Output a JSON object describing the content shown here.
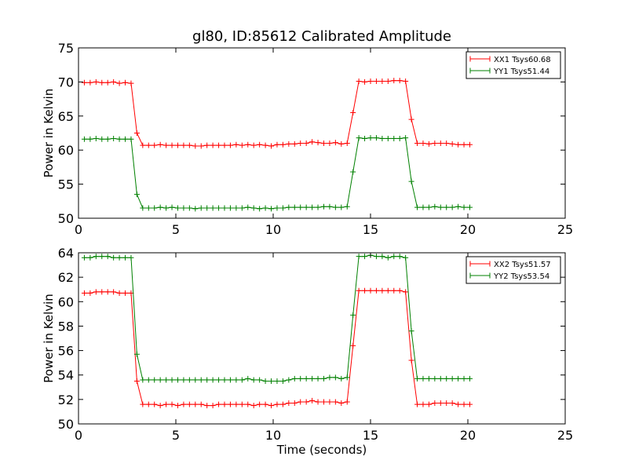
{
  "title": "gl80, ID:85612 Calibrated Amplitude",
  "colors": {
    "XX": "#ff0000",
    "YY": "#008000"
  },
  "chart_data": [
    {
      "type": "line",
      "title": "gl80, ID:85612 Calibrated Amplitude",
      "xlabel": "",
      "ylabel": "Power in Kelvin",
      "xlim": [
        0,
        25
      ],
      "ylim": [
        50,
        75
      ],
      "xticks": [
        0,
        5,
        10,
        15,
        20,
        25
      ],
      "yticks": [
        50,
        55,
        60,
        65,
        70,
        75
      ],
      "legend_position": "top-right",
      "x": [
        0.3,
        0.6,
        0.9,
        1.2,
        1.5,
        1.8,
        2.1,
        2.4,
        2.7,
        3.0,
        3.3,
        3.6,
        3.9,
        4.2,
        4.5,
        4.8,
        5.1,
        5.4,
        5.7,
        6.0,
        6.3,
        6.6,
        6.9,
        7.2,
        7.5,
        7.8,
        8.1,
        8.4,
        8.7,
        9.0,
        9.3,
        9.6,
        9.9,
        10.2,
        10.5,
        10.8,
        11.1,
        11.4,
        11.7,
        12.0,
        12.3,
        12.6,
        12.9,
        13.2,
        13.5,
        13.8,
        14.1,
        14.4,
        14.7,
        15.0,
        15.3,
        15.6,
        15.9,
        16.2,
        16.5,
        16.8,
        17.1,
        17.4,
        17.7,
        18.0,
        18.3,
        18.6,
        18.9,
        19.2,
        19.5,
        19.8,
        20.1
      ],
      "series": [
        {
          "name": "XX1 Tsys60.68",
          "color": "#ff0000",
          "values": [
            69.9,
            69.9,
            70.0,
            69.9,
            69.9,
            70.0,
            69.8,
            69.9,
            69.8,
            62.5,
            60.7,
            60.7,
            60.7,
            60.8,
            60.7,
            60.7,
            60.7,
            60.7,
            60.7,
            60.6,
            60.6,
            60.7,
            60.7,
            60.7,
            60.7,
            60.7,
            60.8,
            60.7,
            60.8,
            60.7,
            60.8,
            60.7,
            60.6,
            60.8,
            60.8,
            60.9,
            60.9,
            61.0,
            61.0,
            61.2,
            61.1,
            61.0,
            61.0,
            61.1,
            60.9,
            61.0,
            65.5,
            70.1,
            70.0,
            70.1,
            70.1,
            70.1,
            70.1,
            70.2,
            70.2,
            70.1,
            64.5,
            61.0,
            61.0,
            60.9,
            61.0,
            61.0,
            61.0,
            60.9,
            60.8,
            60.8,
            60.8
          ]
        },
        {
          "name": "YY1 Tsys51.44",
          "color": "#008000",
          "values": [
            61.6,
            61.6,
            61.7,
            61.6,
            61.6,
            61.7,
            61.6,
            61.6,
            61.6,
            53.5,
            51.5,
            51.5,
            51.5,
            51.6,
            51.5,
            51.6,
            51.5,
            51.5,
            51.5,
            51.4,
            51.5,
            51.5,
            51.5,
            51.5,
            51.5,
            51.5,
            51.5,
            51.5,
            51.6,
            51.5,
            51.4,
            51.5,
            51.4,
            51.5,
            51.5,
            51.6,
            51.6,
            51.6,
            51.6,
            51.6,
            51.6,
            51.7,
            51.7,
            51.6,
            51.6,
            51.7,
            56.8,
            61.8,
            61.7,
            61.8,
            61.8,
            61.7,
            61.7,
            61.7,
            61.7,
            61.8,
            55.4,
            51.6,
            51.6,
            51.6,
            51.7,
            51.6,
            51.6,
            51.6,
            51.7,
            51.6,
            51.6
          ]
        }
      ]
    },
    {
      "type": "line",
      "title": "",
      "xlabel": "Time (seconds)",
      "ylabel": "Power in Kelvin",
      "xlim": [
        0,
        25
      ],
      "ylim": [
        50,
        64
      ],
      "xticks": [
        0,
        5,
        10,
        15,
        20,
        25
      ],
      "yticks": [
        50,
        52,
        54,
        56,
        58,
        60,
        62,
        64
      ],
      "legend_position": "top-right",
      "x": [
        0.3,
        0.6,
        0.9,
        1.2,
        1.5,
        1.8,
        2.1,
        2.4,
        2.7,
        3.0,
        3.3,
        3.6,
        3.9,
        4.2,
        4.5,
        4.8,
        5.1,
        5.4,
        5.7,
        6.0,
        6.3,
        6.6,
        6.9,
        7.2,
        7.5,
        7.8,
        8.1,
        8.4,
        8.7,
        9.0,
        9.3,
        9.6,
        9.9,
        10.2,
        10.5,
        10.8,
        11.1,
        11.4,
        11.7,
        12.0,
        12.3,
        12.6,
        12.9,
        13.2,
        13.5,
        13.8,
        14.1,
        14.4,
        14.7,
        15.0,
        15.3,
        15.6,
        15.9,
        16.2,
        16.5,
        16.8,
        17.1,
        17.4,
        17.7,
        18.0,
        18.3,
        18.6,
        18.9,
        19.2,
        19.5,
        19.8,
        20.1
      ],
      "series": [
        {
          "name": "XX2 Tsys51.57",
          "color": "#ff0000",
          "values": [
            60.7,
            60.7,
            60.8,
            60.8,
            60.8,
            60.8,
            60.7,
            60.7,
            60.7,
            53.5,
            51.6,
            51.6,
            51.6,
            51.5,
            51.6,
            51.6,
            51.5,
            51.6,
            51.6,
            51.6,
            51.6,
            51.5,
            51.5,
            51.6,
            51.6,
            51.6,
            51.6,
            51.6,
            51.6,
            51.5,
            51.6,
            51.6,
            51.5,
            51.6,
            51.6,
            51.7,
            51.7,
            51.8,
            51.8,
            51.9,
            51.8,
            51.8,
            51.8,
            51.8,
            51.7,
            51.8,
            56.4,
            60.9,
            60.9,
            60.9,
            60.9,
            60.9,
            60.9,
            60.9,
            60.9,
            60.8,
            55.2,
            51.6,
            51.6,
            51.6,
            51.7,
            51.7,
            51.7,
            51.7,
            51.6,
            51.6,
            51.6
          ]
        },
        {
          "name": "YY2 Tsys53.54",
          "color": "#008000",
          "values": [
            63.6,
            63.6,
            63.7,
            63.7,
            63.7,
            63.6,
            63.6,
            63.6,
            63.6,
            55.7,
            53.6,
            53.6,
            53.6,
            53.6,
            53.6,
            53.6,
            53.6,
            53.6,
            53.6,
            53.6,
            53.6,
            53.6,
            53.6,
            53.6,
            53.6,
            53.6,
            53.6,
            53.6,
            53.7,
            53.6,
            53.6,
            53.5,
            53.5,
            53.5,
            53.5,
            53.6,
            53.7,
            53.7,
            53.7,
            53.7,
            53.7,
            53.7,
            53.8,
            53.8,
            53.7,
            53.8,
            58.9,
            63.7,
            63.7,
            63.8,
            63.7,
            63.7,
            63.6,
            63.7,
            63.7,
            63.6,
            57.6,
            53.7,
            53.7,
            53.7,
            53.7,
            53.7,
            53.7,
            53.7,
            53.7,
            53.7,
            53.7
          ]
        }
      ]
    }
  ]
}
